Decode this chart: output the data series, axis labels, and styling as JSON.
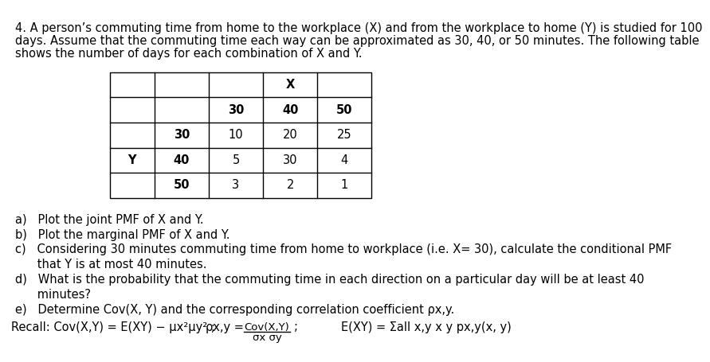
{
  "title_lines": [
    "4. A person’s commuting time from home to the workplace (X) and from the workplace to home (Y) is studied for 100",
    "days. Assume that the commuting time each way can be approximated as 30, 40, or 50 minutes. The following table",
    "shows the number of days for each combination of X and Y."
  ],
  "table_data": [
    [
      10,
      20,
      25
    ],
    [
      5,
      30,
      4
    ],
    [
      3,
      2,
      1
    ]
  ],
  "x_vals": [
    "30",
    "40",
    "50"
  ],
  "y_vals": [
    "30",
    "40",
    "50"
  ],
  "items": [
    "a)   Plot the joint PMF of X and Y.",
    "b)   Plot the marginal PMF of X and Y.",
    "c)   Considering 30 minutes commuting time from home to workplace (i.e. X= 30), calculate the conditional PMF",
    "      that Y is at most 40 minutes.",
    "d)   What is the probability that the commuting time in each direction on a particular day will be at least 40",
    "      minutes?",
    "e)   Determine Cov(X, Y) and the corresponding correlation coefficient ρx,y."
  ],
  "recall_text": "Recall: Cov(X,Y) = E(XY) − μx²μy² ;",
  "rho_text": "ρx,y =",
  "frac_num": "Cov(X,Y)",
  "frac_den": "σx σy",
  "exy_text": "E(XY) = Σall x,y x y px,y(x, y)",
  "bg_color": "#ffffff",
  "text_color": "#000000",
  "font_size": 10.5,
  "table_font_size": 10.5
}
